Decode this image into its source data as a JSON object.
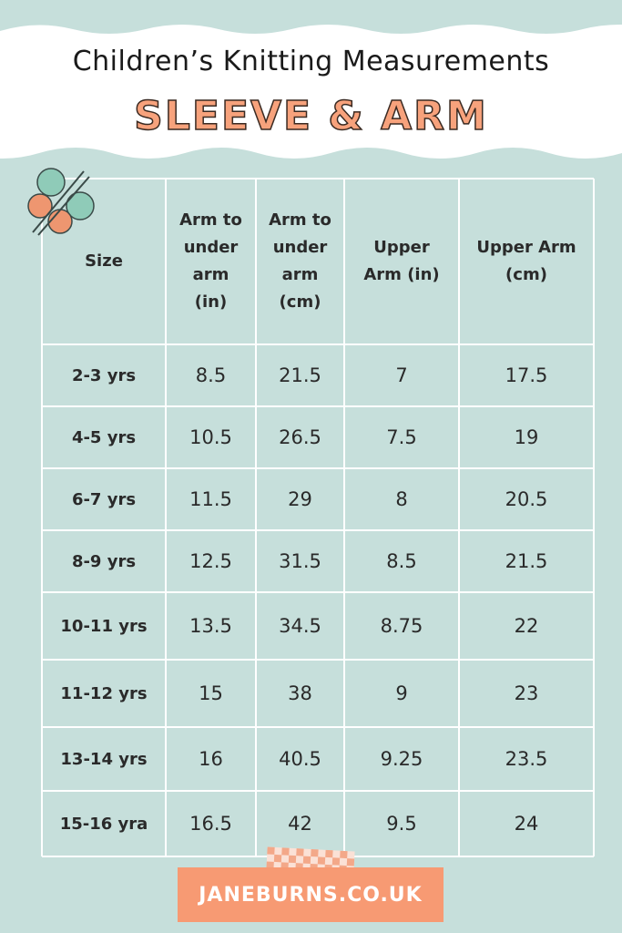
{
  "header": {
    "title": "Children’s Knitting Measurements",
    "subtitle": "SLEEVE & ARM"
  },
  "table": {
    "columns": [
      "Size",
      "Arm to under arm (in)",
      "Arm to under arm (cm)",
      "Upper Arm (in)",
      "Upper Arm (cm)"
    ],
    "rows": [
      [
        "2-3 yrs",
        "8.5",
        "21.5",
        "7",
        "17.5"
      ],
      [
        "4-5 yrs",
        "10.5",
        "26.5",
        "7.5",
        "19"
      ],
      [
        "6-7 yrs",
        "11.5",
        "29",
        "8",
        "20.5"
      ],
      [
        "8-9 yrs",
        "12.5",
        "31.5",
        "8.5",
        "21.5"
      ],
      [
        "10-11 yrs",
        "13.5",
        "34.5",
        "8.75",
        "22"
      ],
      [
        "11-12 yrs",
        "15",
        "38",
        "9",
        "23"
      ],
      [
        "13-14 yrs",
        "16",
        "40.5",
        "9.25",
        "23.5"
      ],
      [
        "15-16 yra",
        "16.5",
        "42",
        "9.5",
        "24"
      ]
    ]
  },
  "footer": {
    "text": "JANEBURNS.CO.UK"
  }
}
